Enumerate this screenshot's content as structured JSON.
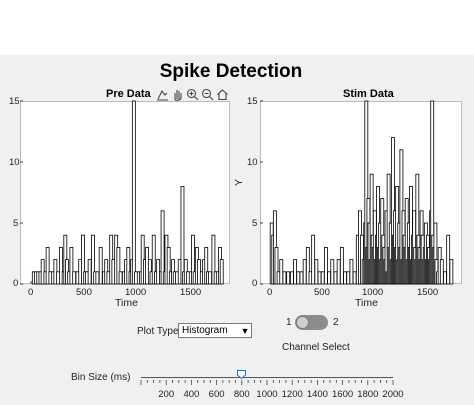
{
  "app": {
    "title": "Spike Detection"
  },
  "toolbar": {
    "icons": [
      "export-icon",
      "pan-icon",
      "zoom-in-icon",
      "zoom-out-icon",
      "home-icon"
    ]
  },
  "controls": {
    "plot_type_label": "Plot Type",
    "plot_type_value": "Histogram",
    "channel_left": "1",
    "channel_right": "2",
    "channel_select_label": "Channel Select",
    "bin_size_label": "Bin Size (ms)",
    "bin_size_value": 800,
    "bin_ticks": [
      "200",
      "400",
      "600",
      "800",
      "1000",
      "1200",
      "1400",
      "1600",
      "1800",
      "2000"
    ]
  },
  "chart_data": [
    {
      "type": "bar",
      "title": "Pre Data",
      "xlabel": "Time",
      "ylabel": "",
      "xlim": [
        -100,
        1800
      ],
      "ylim": [
        0,
        15
      ],
      "xticks": [
        "0",
        "500",
        "1000",
        "1500"
      ],
      "yticks": [
        "0",
        "5",
        "10",
        "15"
      ],
      "x": [
        25,
        45,
        65,
        85,
        105,
        130,
        150,
        175,
        200,
        220,
        245,
        270,
        295,
        310,
        325,
        345,
        365,
        390,
        420,
        445,
        470,
        490,
        505,
        530,
        560,
        580,
        600,
        630,
        660,
        680,
        700,
        725,
        745,
        770,
        790,
        810,
        840,
        860,
        880,
        900,
        915,
        930,
        950,
        975,
        995,
        1010,
        1030,
        1050,
        1075,
        1090,
        1110,
        1130,
        1150,
        1175,
        1190,
        1210,
        1225,
        1245,
        1265,
        1285,
        1300,
        1320,
        1345,
        1370,
        1385,
        1400,
        1420,
        1445,
        1465,
        1480,
        1500,
        1520,
        1545,
        1565,
        1585,
        1600,
        1620,
        1650,
        1670,
        1690,
        1710,
        1725
      ],
      "values": [
        1,
        1,
        1,
        1,
        2,
        1,
        3,
        1,
        1,
        2,
        1,
        3,
        1,
        4,
        2,
        1,
        3,
        1,
        1,
        2,
        4,
        1,
        1,
        2,
        4,
        1,
        1,
        3,
        1,
        2,
        1,
        4,
        2,
        4,
        3,
        1,
        1,
        2,
        3,
        1,
        2,
        15,
        1,
        1,
        1,
        4,
        2,
        3,
        2,
        1,
        4,
        1,
        2,
        1,
        6,
        1,
        4,
        3,
        1,
        2,
        1,
        1,
        2,
        8,
        1,
        2,
        1,
        1,
        4,
        1,
        3,
        2,
        1,
        2,
        3,
        1,
        1,
        4,
        1,
        1,
        3,
        2
      ]
    },
    {
      "type": "bar",
      "title": "Stim Data",
      "xlabel": "Time",
      "ylabel": "Y",
      "xlim": [
        -100,
        1800
      ],
      "ylim": [
        0,
        15
      ],
      "xticks": [
        "0",
        "500",
        "1000",
        "1500"
      ],
      "yticks": [
        "0",
        "5",
        "10",
        "15"
      ],
      "x": [
        10,
        25,
        40,
        55,
        75,
        100,
        130,
        165,
        200,
        230,
        260,
        290,
        320,
        350,
        375,
        400,
        430,
        460,
        490,
        520,
        550,
        580,
        610,
        640,
        670,
        700,
        730,
        760,
        790,
        820,
        840,
        860,
        875,
        890,
        900,
        910,
        920,
        930,
        940,
        950,
        960,
        970,
        980,
        990,
        1000,
        1010,
        1020,
        1030,
        1040,
        1050,
        1060,
        1070,
        1080,
        1090,
        1100,
        1110,
        1120,
        1130,
        1140,
        1150,
        1160,
        1170,
        1180,
        1190,
        1200,
        1210,
        1220,
        1230,
        1240,
        1250,
        1260,
        1270,
        1280,
        1290,
        1300,
        1310,
        1320,
        1330,
        1340,
        1350,
        1360,
        1370,
        1380,
        1390,
        1400,
        1410,
        1420,
        1430,
        1440,
        1450,
        1460,
        1470,
        1480,
        1490,
        1500,
        1510,
        1520,
        1530,
        1540,
        1550,
        1560,
        1575,
        1590,
        1610,
        1640,
        1670,
        1700
      ],
      "values": [
        5,
        4,
        6,
        3,
        1,
        2,
        1,
        1,
        1,
        2,
        1,
        1,
        2,
        3,
        1,
        4,
        2,
        1,
        1,
        3,
        1,
        2,
        1,
        2,
        3,
        1,
        1,
        2,
        1,
        4,
        6,
        4,
        2,
        5,
        15,
        3,
        7,
        5,
        2,
        9,
        4,
        3,
        6,
        2,
        4,
        8,
        3,
        5,
        2,
        7,
        4,
        3,
        2,
        6,
        1,
        9,
        3,
        5,
        2,
        12,
        4,
        6,
        3,
        8,
        2,
        5,
        3,
        11,
        2,
        6,
        4,
        3,
        7,
        2,
        5,
        3,
        8,
        2,
        4,
        6,
        3,
        2,
        9,
        4,
        3,
        2,
        6,
        4,
        2,
        3,
        5,
        2,
        4,
        3,
        2,
        6,
        15,
        4,
        3,
        5,
        2,
        1,
        3,
        2,
        1,
        4,
        2
      ]
    }
  ]
}
